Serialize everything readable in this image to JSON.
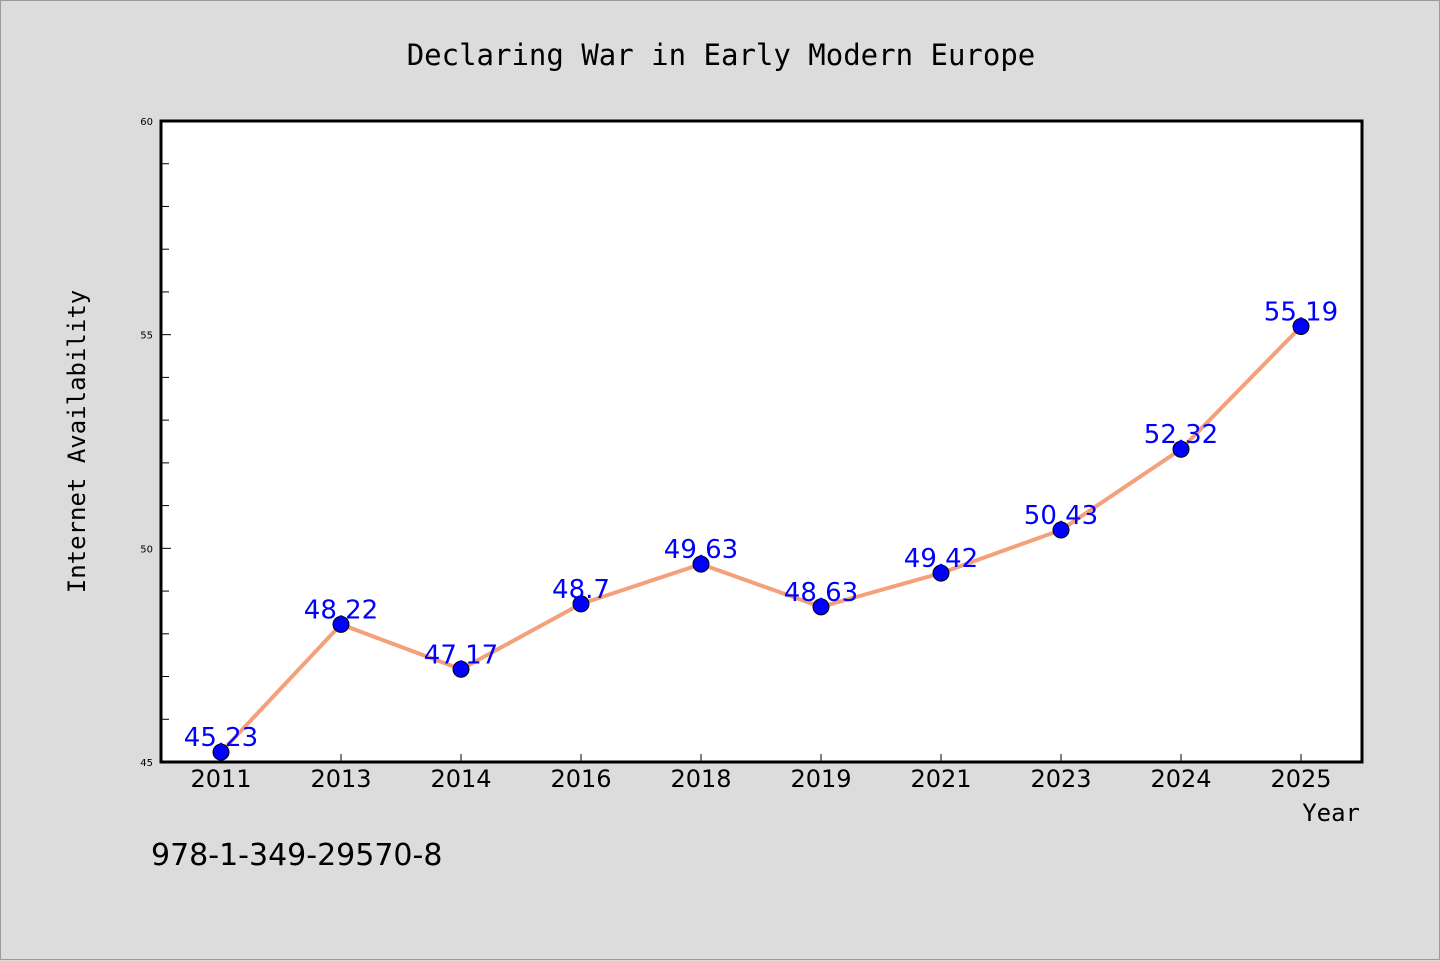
{
  "chart_data": {
    "type": "line",
    "title": "Declaring War in Early Modern Europe",
    "xlabel": "Year",
    "ylabel": "Internet Availability",
    "categories": [
      "2011",
      "2013",
      "2014",
      "2016",
      "2018",
      "2019",
      "2021",
      "2023",
      "2024",
      "2025"
    ],
    "series": [
      {
        "values": [
          45.23,
          48.22,
          47.17,
          48.7,
          49.63,
          48.63,
          49.42,
          50.43,
          52.32,
          55.19
        ],
        "labels": [
          "45.23",
          "48.22",
          "47.17",
          "48.7",
          "49.63",
          "48.63",
          "49.42",
          "50.43",
          "52.32",
          "55.19"
        ],
        "line_color": "#f4a07a",
        "marker_color": "#0000ff"
      }
    ],
    "ylim": [
      45,
      60
    ],
    "yticks": [
      "45",
      "50",
      "55",
      "60"
    ],
    "grid": false,
    "legend": "none"
  },
  "footnote": "978-1-349-29570-8",
  "colors": {
    "background": "#dcdcdc",
    "plot_background": "#ffffff",
    "label": "#0000ff"
  }
}
